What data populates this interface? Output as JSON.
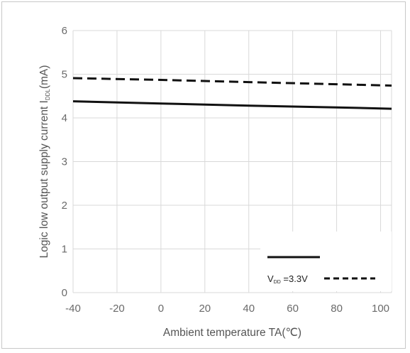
{
  "chart_data": {
    "type": "line",
    "xlabel": "Ambient temperature TA(℃)",
    "ylabel_main": "Logic low output supply current I",
    "ylabel_sub": "DDL",
    "ylabel_unit": "(mA)",
    "xlim": [
      -40,
      105
    ],
    "ylim": [
      0,
      6
    ],
    "x_ticks": [
      -40,
      -20,
      0,
      20,
      40,
      60,
      80,
      100
    ],
    "y_ticks": [
      0,
      1,
      2,
      3,
      4,
      5,
      6
    ],
    "x_tick_labels": [
      "-40",
      "-20",
      "0",
      "20",
      "40",
      "60",
      "80",
      "100"
    ],
    "y_tick_labels": [
      "0",
      "1",
      "2",
      "3",
      "4",
      "5",
      "6"
    ],
    "grid": true,
    "legend_position": "bottom-right",
    "series": [
      {
        "name": "",
        "style": "solid",
        "color": "#111111",
        "x": [
          -40,
          0,
          40,
          80,
          105
        ],
        "y": [
          4.38,
          4.33,
          4.28,
          4.24,
          4.21
        ]
      },
      {
        "name": "VDD =3.3V",
        "name_main": "V",
        "name_sub": "DD",
        "name_rest": " =3.3V",
        "style": "dashed",
        "color": "#111111",
        "x": [
          -40,
          0,
          40,
          80,
          105
        ],
        "y": [
          4.91,
          4.87,
          4.82,
          4.77,
          4.74
        ]
      }
    ]
  }
}
